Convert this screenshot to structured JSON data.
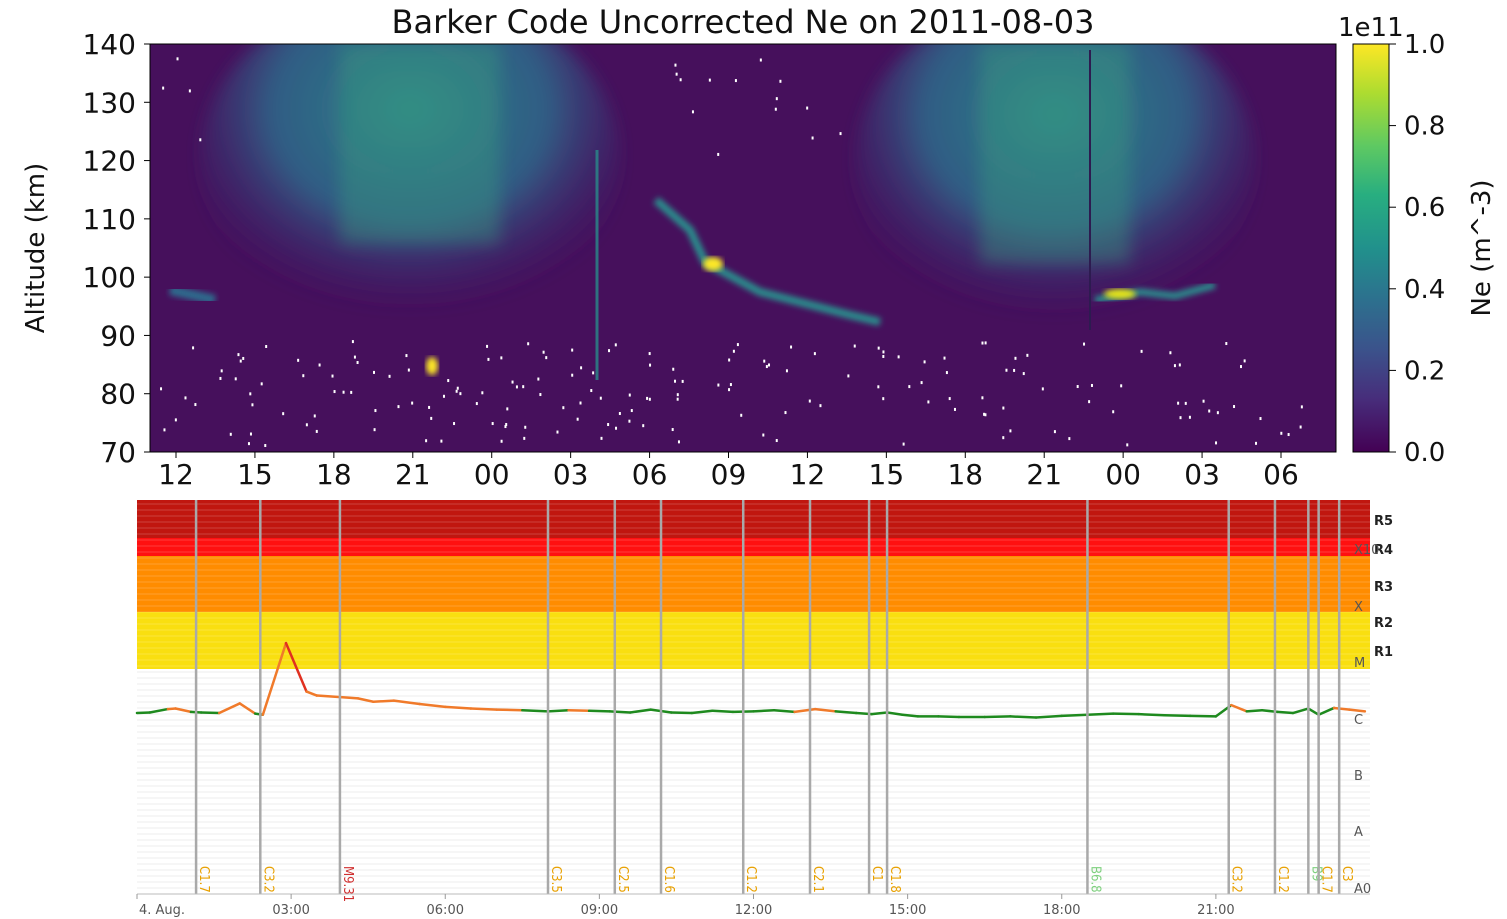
{
  "chart_data": [
    {
      "type": "heatmap",
      "title": "Barker Code Uncorrected Ne on 2011-08-03",
      "ylabel": "Altitude (km)",
      "ylim": [
        70,
        140
      ],
      "yticks": [
        "70",
        "80",
        "90",
        "100",
        "110",
        "120",
        "130",
        "140"
      ],
      "xticks": [
        "12",
        "15",
        "18",
        "21",
        "00",
        "03",
        "06",
        "09",
        "12",
        "15",
        "18",
        "21",
        "00",
        "03",
        "06"
      ],
      "colorbar": {
        "label": "Ne (m^-3)",
        "exponent": "1e11",
        "range": [
          0.0,
          1.0
        ],
        "ticks": [
          "0.0",
          "0.2",
          "0.4",
          "0.6",
          "0.8",
          "1.0"
        ],
        "colormap": "viridis"
      }
    },
    {
      "type": "line",
      "xticks": [
        "4. Aug.",
        "03:00",
        "06:00",
        "09:00",
        "12:00",
        "15:00",
        "18:00",
        "21:00"
      ],
      "r_scale": [
        "R5",
        "R4",
        "R3",
        "R2",
        "R1"
      ],
      "class_labels": [
        "X10",
        "X",
        "M",
        "C",
        "B",
        "A",
        "A0"
      ],
      "flare_hours": [
        0,
        0.25,
        0.6,
        0.75,
        1.05,
        1.25,
        1.6,
        2.0,
        2.3,
        2.45,
        2.9,
        3.3,
        3.5,
        4.0,
        4.3,
        4.6,
        5.0,
        5.5,
        6.0,
        6.5,
        7.0,
        7.5,
        8.0,
        8.4,
        8.8,
        9.2,
        9.6,
        10.0,
        10.4,
        10.8,
        11.2,
        11.6,
        12.0,
        12.4,
        12.8,
        13.2,
        13.6,
        14.0,
        14.3,
        14.6,
        14.9,
        15.2,
        15.6,
        16.0,
        16.5,
        17.0,
        17.5,
        18.0,
        18.5,
        19.0,
        19.5,
        20.0,
        20.5,
        21.0,
        21.3,
        21.6,
        21.9,
        22.2,
        22.5,
        22.8,
        23.0,
        23.3,
        23.6,
        23.9
      ],
      "flare_level": [
        0.52,
        0.53,
        0.59,
        0.6,
        0.54,
        0.53,
        0.52,
        0.69,
        0.51,
        0.49,
        1.76,
        0.9,
        0.83,
        0.8,
        0.78,
        0.72,
        0.74,
        0.68,
        0.63,
        0.6,
        0.58,
        0.57,
        0.55,
        0.57,
        0.56,
        0.55,
        0.53,
        0.58,
        0.53,
        0.52,
        0.56,
        0.54,
        0.55,
        0.57,
        0.54,
        0.59,
        0.55,
        0.52,
        0.5,
        0.53,
        0.49,
        0.46,
        0.46,
        0.45,
        0.45,
        0.46,
        0.44,
        0.47,
        0.49,
        0.51,
        0.5,
        0.48,
        0.47,
        0.46,
        0.66,
        0.55,
        0.57,
        0.54,
        0.52,
        0.6,
        0.49,
        0.61,
        0.58,
        0.55
      ],
      "events": [
        {
          "label": "C1.7",
          "color": "#e8a000"
        },
        {
          "label": "C3.2",
          "color": "#e8a000"
        },
        {
          "label": "M9.31",
          "color": "#d03030"
        },
        {
          "label": "C3.5",
          "color": "#e8a000"
        },
        {
          "label": "C2.5",
          "color": "#e8a000"
        },
        {
          "label": "C1.6",
          "color": "#e8a000"
        },
        {
          "label": "C1.2",
          "color": "#e8a000"
        },
        {
          "label": "C2.1",
          "color": "#e8a000"
        },
        {
          "label": "C1",
          "color": "#e8a000"
        },
        {
          "label": "C1.8",
          "color": "#e8a000"
        },
        {
          "label": "B6.8",
          "color": "#7ed07e"
        },
        {
          "label": "C3.2",
          "color": "#e8a000"
        },
        {
          "label": "C1.2",
          "color": "#e8a000"
        },
        {
          "label": "B9",
          "color": "#7ed07e"
        },
        {
          "label": "C1.7",
          "color": "#e8a000"
        },
        {
          "label": "C3",
          "color": "#e8a000"
        }
      ],
      "event_hours": [
        1.15,
        2.4,
        3.95,
        8.0,
        9.3,
        10.2,
        11.8,
        13.1,
        14.25,
        14.6,
        18.5,
        21.25,
        22.15,
        22.8,
        23.0,
        23.4
      ]
    }
  ]
}
